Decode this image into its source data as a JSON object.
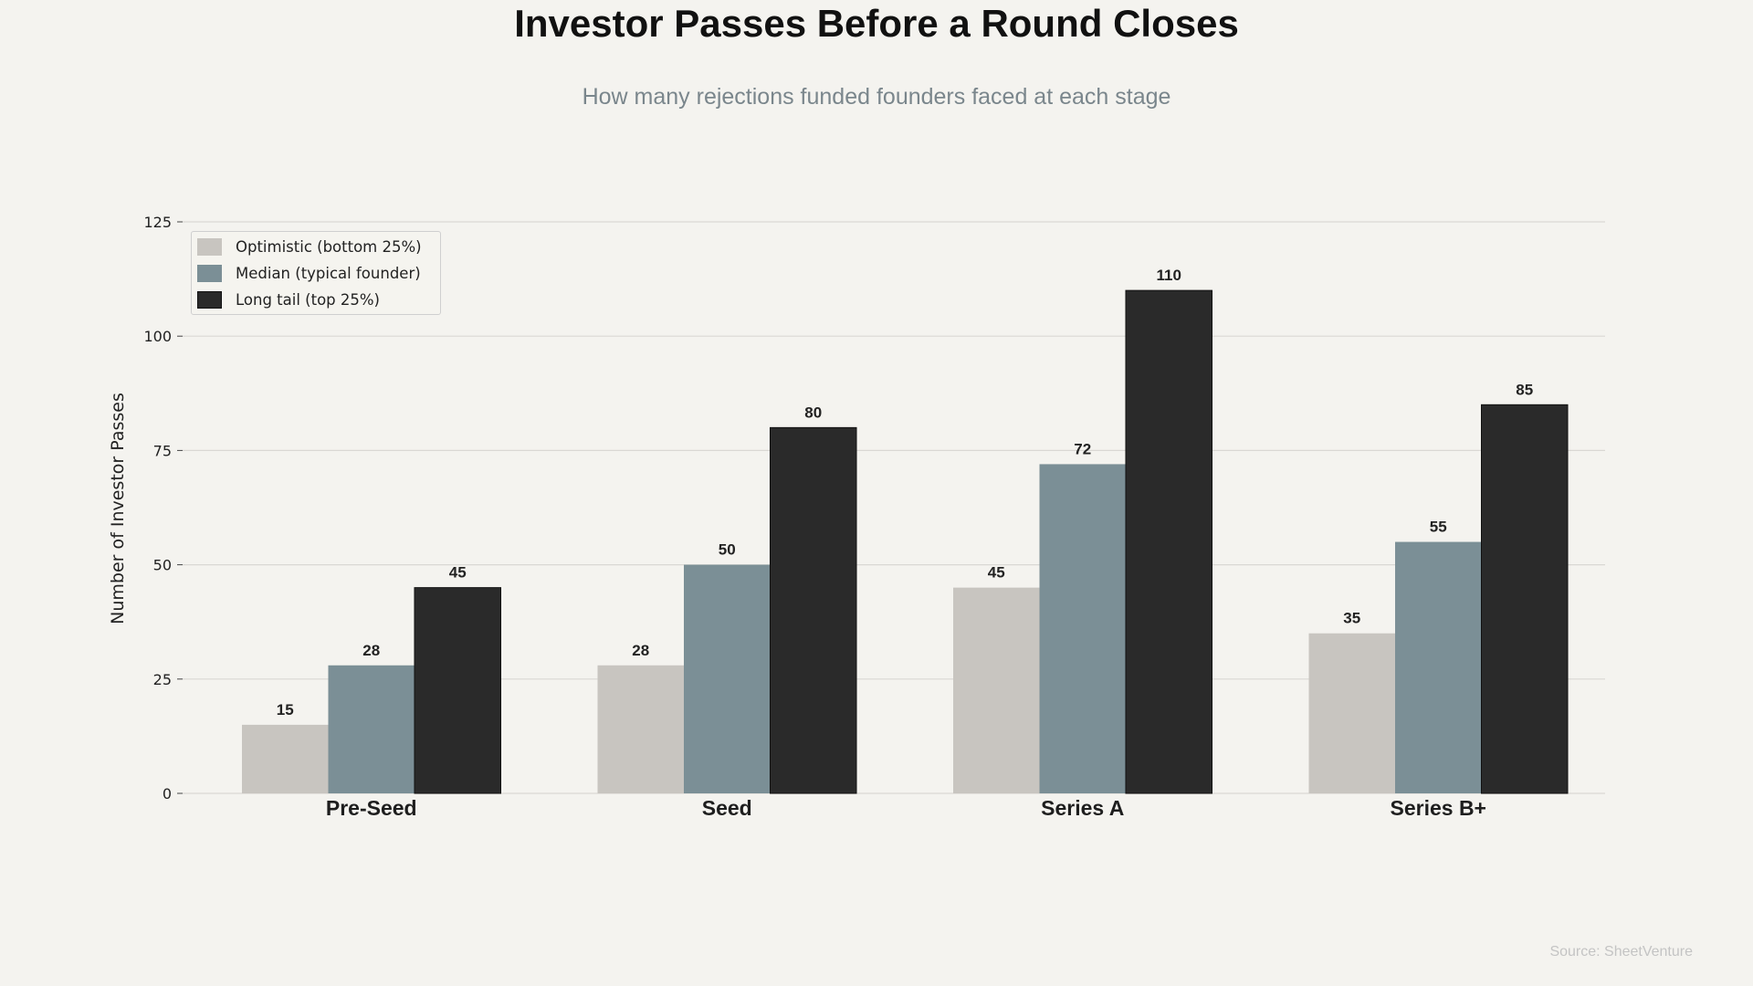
{
  "chart_data": {
    "type": "bar",
    "title": "Investor Passes Before a Round Closes",
    "subtitle": "How many rejections funded founders faced at each stage",
    "xlabel": "",
    "ylabel": "Number of Investor Passes",
    "ylim": [
      0,
      125
    ],
    "yticks": [
      0,
      25,
      50,
      75,
      100,
      125
    ],
    "categories": [
      "Pre-Seed",
      "Seed",
      "Series A",
      "Series B+"
    ],
    "series": [
      {
        "name": "Optimistic (bottom 25%)",
        "values": [
          15,
          28,
          45,
          35
        ],
        "color": "#c8c5c0"
      },
      {
        "name": "Median (typical founder)",
        "values": [
          28,
          50,
          72,
          55
        ],
        "color": "#7b8f96"
      },
      {
        "name": "Long tail (top 25%)",
        "values": [
          45,
          80,
          110,
          85
        ],
        "color": "#2a2a2a"
      }
    ],
    "grid": true,
    "legend_position": "top-left",
    "source": "Source: SheetVenture"
  }
}
